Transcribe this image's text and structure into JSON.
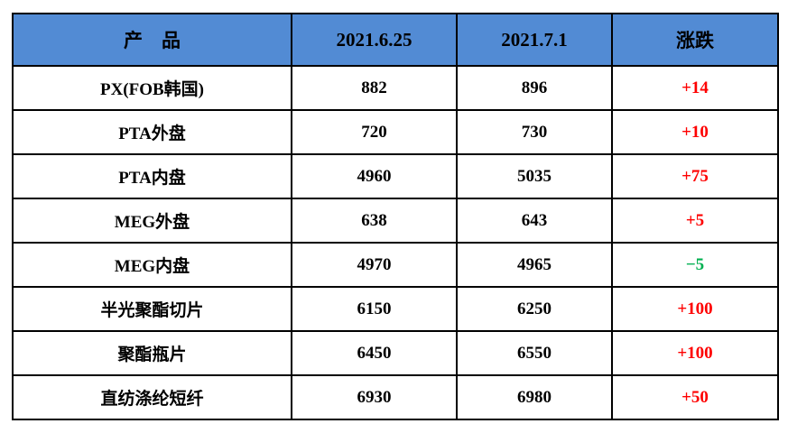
{
  "colors": {
    "header_bg": "#528BD4",
    "up": "#FE0000",
    "down": "#00B050",
    "border": "#000000",
    "text": "#000000"
  },
  "table": {
    "headers": {
      "product": "产　品",
      "date1": "2021.6.25",
      "date2": "2021.7.1",
      "change": "涨跌"
    },
    "rows": [
      {
        "product": "PX(FOB韩国)",
        "price_0625": "882",
        "price_0701": "896",
        "change": "+14",
        "change_color": "#FE0000"
      },
      {
        "product": "PTA外盘",
        "price_0625": "720",
        "price_0701": "730",
        "change": "+10",
        "change_color": "#FE0000"
      },
      {
        "product": "PTA内盘",
        "price_0625": "4960",
        "price_0701": "5035",
        "change": "+75",
        "change_color": "#FE0000"
      },
      {
        "product": "MEG外盘",
        "price_0625": "638",
        "price_0701": "643",
        "change": "+5",
        "change_color": "#FE0000"
      },
      {
        "product": "MEG内盘",
        "price_0625": "4970",
        "price_0701": "4965",
        "change": "−5",
        "change_color": "#00B050"
      },
      {
        "product": "半光聚酯切片",
        "price_0625": "6150",
        "price_0701": "6250",
        "change": "+100",
        "change_color": "#FE0000"
      },
      {
        "product": "聚酯瓶片",
        "price_0625": "6450",
        "price_0701": "6550",
        "change": "+100",
        "change_color": "#FE0000"
      },
      {
        "product": "直纺涤纶短纤",
        "price_0625": "6930",
        "price_0701": "6980",
        "change": "+50",
        "change_color": "#FE0000"
      }
    ]
  },
  "chart_data": {
    "type": "table",
    "title": "",
    "columns": [
      "产品",
      "2021.6.25",
      "2021.7.1",
      "涨跌"
    ],
    "rows": [
      [
        "PX(FOB韩国)",
        882,
        896,
        "+14"
      ],
      [
        "PTA外盘",
        720,
        730,
        "+10"
      ],
      [
        "PTA内盘",
        4960,
        5035,
        "+75"
      ],
      [
        "MEG外盘",
        638,
        643,
        "+5"
      ],
      [
        "MEG内盘",
        4970,
        4965,
        "−5"
      ],
      [
        "半光聚酯切片",
        6150,
        6250,
        "+100"
      ],
      [
        "聚酯瓶片",
        6450,
        6550,
        "+100"
      ],
      [
        "直纺涤纶短纤",
        6930,
        6980,
        "+50"
      ]
    ],
    "notes": "Price comparison table; 涨跌 column colored red for increases, green for decreases"
  }
}
